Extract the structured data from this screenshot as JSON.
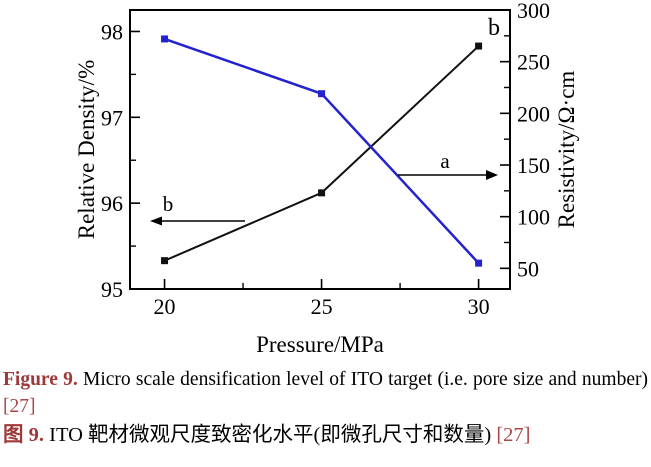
{
  "figure": {
    "panel_label": "b"
  },
  "chart_data": {
    "type": "line",
    "title": "",
    "xlabel": "Pressure/MPa",
    "ylabel_left": "Relative Density/%",
    "ylabel_right": "Resistivity/Ω·cm",
    "x": [
      20,
      25,
      30
    ],
    "xlim": [
      18.9,
      31.0
    ],
    "xticks": [
      "20",
      "25",
      "30"
    ],
    "xticks_minor": [
      22.5,
      27.5
    ],
    "ylim_left": [
      95,
      98.25
    ],
    "yticks_left": [
      "95",
      "96",
      "97",
      "98"
    ],
    "yticks_minor_left": [
      95.5,
      96.5,
      97.5
    ],
    "ylim_right": [
      30,
      300
    ],
    "yticks_right": [
      "50",
      "100",
      "150",
      "200",
      "250",
      "300"
    ],
    "yticks_minor_right": [
      75,
      125,
      175,
      225,
      275
    ],
    "grid": false,
    "legend": "none",
    "corner_label": "b",
    "series": [
      {
        "name": "b — Relative Density",
        "axis": "left",
        "color": "#111111",
        "marker": "square",
        "values": [
          95.33,
          96.12,
          97.83
        ]
      },
      {
        "name": "a — Resistivity",
        "axis": "right",
        "color": "#2222d0",
        "marker": "square",
        "values": [
          272,
          219,
          55
        ]
      }
    ],
    "annotations": [
      {
        "label": "a",
        "points_to": "right-axis"
      },
      {
        "label": "b",
        "points_to": "left-axis"
      }
    ]
  },
  "caption": {
    "en_label": "Figure 9.",
    "en_text": " Micro scale densification level of ITO target (i.e. pore size and number) ",
    "en_ref": "[27]",
    "zh_label": "图 9.",
    "zh_text": " ITO 靶材微观尺度致密化水平(即微孔尺寸和数量) ",
    "zh_ref": "[27]"
  },
  "colors": {
    "caption_label": "#9e3939",
    "reference": "#aa4747",
    "axis": "#000000",
    "line_black": "#111111",
    "line_blue": "#2222d0"
  }
}
